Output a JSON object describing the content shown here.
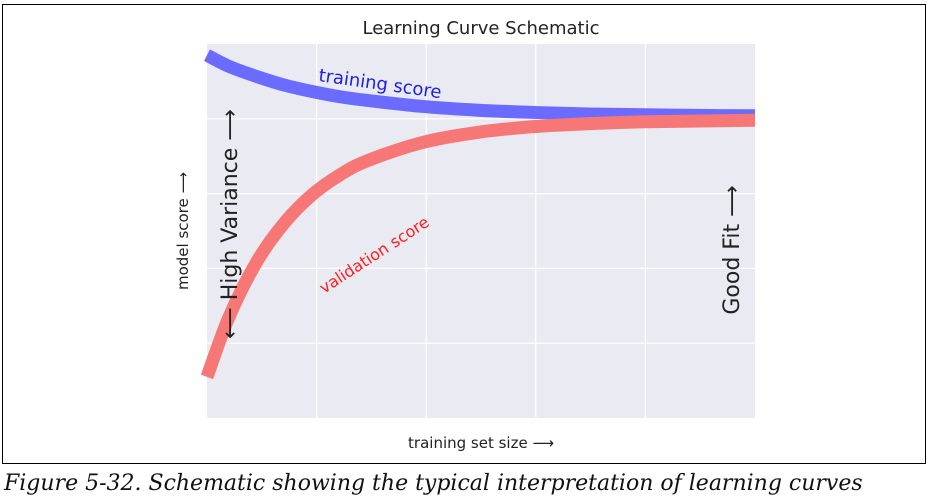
{
  "figure": {
    "caption": "Figure 5-32. Schematic showing the typical interpretation of learning curves"
  },
  "chart_data": {
    "type": "line",
    "title": "Learning Curve Schematic",
    "xlabel": "training set size ⟶",
    "ylabel": "model score ⟶",
    "xlim": [
      1,
      100
    ],
    "ylim": [
      0,
      1
    ],
    "grid": true,
    "series": [
      {
        "name": "training score",
        "color": "#6b6bff",
        "x": [
          1,
          5,
          10,
          15,
          20,
          25,
          30,
          40,
          50,
          60,
          70,
          80,
          90,
          100
        ],
        "y": [
          0.97,
          0.94,
          0.913,
          0.89,
          0.873,
          0.859,
          0.849,
          0.833,
          0.823,
          0.817,
          0.813,
          0.811,
          0.809,
          0.808
        ]
      },
      {
        "name": "validation score",
        "color": "#f77777",
        "x": [
          1,
          5,
          10,
          15,
          20,
          25,
          30,
          40,
          50,
          60,
          70,
          80,
          90,
          100
        ],
        "y": [
          0.11,
          0.271,
          0.418,
          0.522,
          0.597,
          0.65,
          0.688,
          0.737,
          0.764,
          0.779,
          0.787,
          0.792,
          0.794,
          0.796
        ]
      }
    ],
    "annotations": [
      {
        "text": "⟵ High Variance ⟶",
        "x": 3,
        "y": 0.55,
        "rotation": 90
      },
      {
        "text": "Good Fit ⟶",
        "x": 97,
        "y": 0.55,
        "rotation": 90
      }
    ]
  }
}
